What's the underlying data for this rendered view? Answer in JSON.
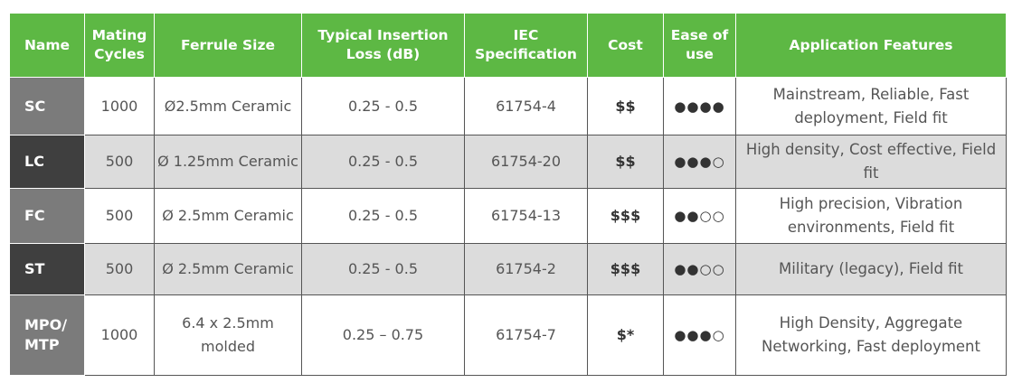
{
  "headers": [
    "Name",
    "Mating Cycles",
    "Ferrule Size",
    "Typical Insertion Loss (dB)",
    "IEC Specification",
    "Cost",
    "Ease of use",
    "Application Features"
  ],
  "rows": [
    {
      "name": "SC",
      "cycles": "1000",
      "ferrule": "Ø2.5mm Ceramic",
      "loss": "0.25 - 0.5",
      "iec": "61754-4",
      "cost": "$$",
      "ease": "●●●●",
      "features": "Mainstream, Reliable, Fast deployment, Field fit"
    },
    {
      "name": "LC",
      "cycles": "500",
      "ferrule": "Ø 1.25mm Ceramic",
      "loss": "0.25 - 0.5",
      "iec": "61754-20",
      "cost": "$$",
      "ease": "●●●○",
      "features": "High density, Cost effective, Field fit"
    },
    {
      "name": "FC",
      "cycles": "500",
      "ferrule": "Ø 2.5mm Ceramic",
      "loss": "0.25 - 0.5",
      "iec": "61754-13",
      "cost": "$$$",
      "ease": "●●○○",
      "features": "High precision, Vibration environments, Field fit"
    },
    {
      "name": "ST",
      "cycles": "500",
      "ferrule": "Ø 2.5mm Ceramic",
      "loss": "0.25 - 0.5",
      "iec": "61754-2",
      "cost": "$$$",
      "ease": "●●○○",
      "features": "Military (legacy), Field fit"
    },
    {
      "name": "MPO/ MTP",
      "cycles": "1000",
      "ferrule": "6.4 x 2.5mm molded",
      "loss": "0.25 – 0.75",
      "iec": "61754-7",
      "cost": "$*",
      "ease": "●●●○",
      "features": "High Density, Aggregate Networking, Fast deployment"
    }
  ]
}
